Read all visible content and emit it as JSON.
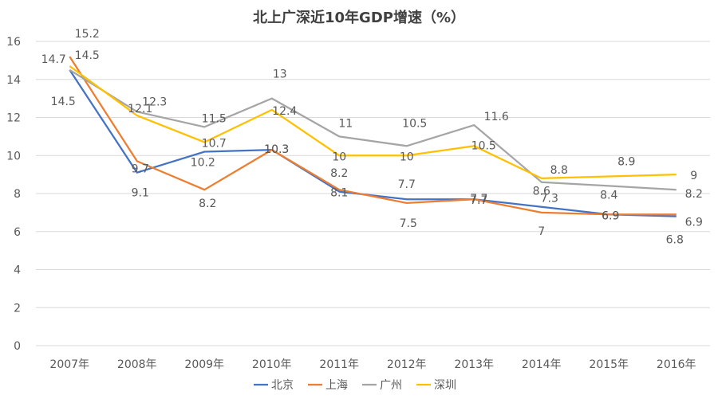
{
  "chart_data": {
    "type": "line",
    "title": "北上广深近10年GDP增速（%）",
    "xlabel": "",
    "ylabel": "",
    "categories": [
      "2007年",
      "2008年",
      "2009年",
      "2010年",
      "2011年",
      "2012年",
      "2013年",
      "2014年",
      "2015年",
      "2016年"
    ],
    "y_ticks": [
      "0",
      "2",
      "4",
      "6",
      "8",
      "10",
      "12",
      "14",
      "16"
    ],
    "ylim": [
      0,
      16
    ],
    "grid": true,
    "legend_position": "bottom",
    "series": [
      {
        "name": "北京",
        "color": "#4472C4",
        "values": [
          14.5,
          9.1,
          10.2,
          10.3,
          8.1,
          7.7,
          7.7,
          7.3,
          6.9,
          6.8
        ],
        "labels": [
          "14.5",
          "9.1",
          "10.2",
          "10.3",
          "8.1",
          "7.7",
          "7.7",
          "7.3",
          "6.9",
          "6.8"
        ]
      },
      {
        "name": "上海",
        "color": "#ED7D31",
        "values": [
          15.2,
          9.7,
          8.2,
          10.3,
          8.2,
          7.5,
          7.7,
          7.0,
          6.9,
          6.9
        ],
        "labels": [
          "15.2",
          "9.7",
          "8.2",
          "10.3",
          "8.2",
          "7.5",
          "7.7",
          "7",
          "6.9",
          "6.9"
        ]
      },
      {
        "name": "广州",
        "color": "#A5A5A5",
        "values": [
          14.5,
          12.3,
          11.5,
          13.0,
          11.0,
          10.5,
          11.6,
          8.6,
          8.4,
          8.2
        ],
        "labels": [
          "14.5",
          "12.3",
          "11.5",
          "13",
          "11",
          "10.5",
          "11.6",
          "8.6",
          "8.4",
          "8.2"
        ]
      },
      {
        "name": "深圳",
        "color": "#FFC000",
        "values": [
          14.7,
          12.1,
          10.7,
          12.4,
          10.0,
          10.0,
          10.5,
          8.8,
          8.9,
          9.0
        ],
        "labels": [
          "14.7",
          "12.1",
          "10.7",
          "12.4",
          "10",
          "10",
          "10.5",
          "8.8",
          "8.9",
          "9"
        ]
      }
    ]
  }
}
